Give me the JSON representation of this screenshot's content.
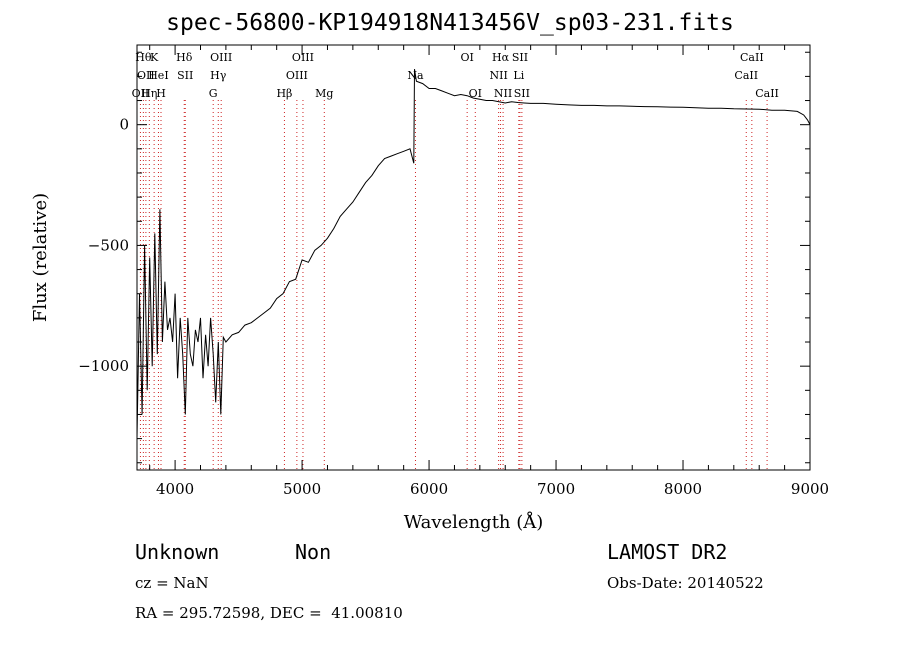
{
  "chart_data": {
    "type": "line",
    "title": "spec-56800-KP194918N413456V_sp03-231.fits",
    "xlabel": "Wavelength (Å)",
    "ylabel": "Flux (relative)",
    "xlim": [
      3700,
      9000
    ],
    "ylim": [
      -1430,
      330
    ],
    "x_ticks": [
      {
        "v": 4000,
        "label": "4000"
      },
      {
        "v": 5000,
        "label": "5000"
      },
      {
        "v": 6000,
        "label": "6000"
      },
      {
        "v": 7000,
        "label": "7000"
      },
      {
        "v": 8000,
        "label": "8000"
      },
      {
        "v": 9000,
        "label": "9000"
      }
    ],
    "y_ticks": [
      {
        "v": 0,
        "label": "0"
      },
      {
        "v": -500,
        "label": "−500"
      },
      {
        "v": -1000,
        "label": "−1000"
      }
    ],
    "grid": false,
    "line_color": "#000000",
    "marker_color": "#cc2222",
    "series": [
      {
        "x": [
          3700,
          3720,
          3740,
          3760,
          3780,
          3800,
          3820,
          3840,
          3860,
          3880,
          3900,
          3920,
          3940,
          3960,
          3980,
          4000,
          4020,
          4040,
          4060,
          4080,
          4100,
          4120,
          4140,
          4160,
          4180,
          4200,
          4220,
          4240,
          4260,
          4280,
          4300,
          4320,
          4340,
          4360,
          4380,
          4400,
          4450,
          4500,
          4550,
          4600,
          4650,
          4700,
          4750,
          4800,
          4850,
          4900,
          4950,
          5000,
          5050,
          5100,
          5150,
          5200,
          5250,
          5300,
          5350,
          5400,
          5450,
          5500,
          5550,
          5600,
          5650,
          5700,
          5750,
          5800,
          5850,
          5880,
          5885,
          5900,
          5950,
          6000,
          6050,
          6100,
          6150,
          6200,
          6250,
          6300,
          6350,
          6400,
          6450,
          6500,
          6550,
          6600,
          6650,
          6700,
          6750,
          6800,
          6900,
          7000,
          7100,
          7200,
          7300,
          7400,
          7500,
          7600,
          7700,
          7800,
          7900,
          8000,
          8100,
          8200,
          8300,
          8400,
          8500,
          8600,
          8700,
          8800,
          8900,
          8950,
          8980,
          9000
        ],
        "y": [
          -1300,
          -700,
          -1200,
          -500,
          -1100,
          -550,
          -1000,
          -450,
          -950,
          -350,
          -900,
          -650,
          -850,
          -800,
          -900,
          -700,
          -1050,
          -800,
          -950,
          -1200,
          -800,
          -950,
          -1000,
          -850,
          -900,
          -800,
          -1050,
          -870,
          -1000,
          -800,
          -950,
          -1150,
          -900,
          -1200,
          -880,
          -900,
          -870,
          -860,
          -830,
          -820,
          -800,
          -780,
          -760,
          -720,
          -700,
          -650,
          -640,
          -560,
          -570,
          -520,
          -500,
          -470,
          -430,
          -380,
          -350,
          -320,
          -280,
          -240,
          -210,
          -170,
          -140,
          -130,
          -120,
          -110,
          -100,
          -160,
          230,
          180,
          170,
          150,
          150,
          140,
          130,
          120,
          125,
          120,
          110,
          105,
          100,
          100,
          95,
          90,
          95,
          92,
          90,
          88,
          88,
          85,
          82,
          80,
          80,
          78,
          78,
          76,
          75,
          74,
          73,
          72,
          70,
          68,
          68,
          66,
          65,
          64,
          60,
          60,
          55,
          40,
          20,
          0
        ]
      }
    ],
    "annotations": [
      {
        "x": 3727,
        "label": "OII",
        "row": 2
      },
      {
        "x": 3750,
        "label": "Hθ",
        "row": 0
      },
      {
        "x": 3770,
        "label": "OII",
        "row": 1
      },
      {
        "x": 3797,
        "label": "Hη",
        "row": 2
      },
      {
        "x": 3835,
        "label": "K",
        "row": 0
      },
      {
        "x": 3869,
        "label": "HeI",
        "row": 1
      },
      {
        "x": 3889,
        "label": "H",
        "row": 2
      },
      {
        "x": 4072,
        "label": "Hδ",
        "row": 0
      },
      {
        "x": 4080,
        "label": "SII",
        "row": 1
      },
      {
        "x": 4300,
        "label": "G",
        "row": 2
      },
      {
        "x": 4340,
        "label": "Hγ",
        "row": 1
      },
      {
        "x": 4363,
        "label": "OIII",
        "row": 0
      },
      {
        "x": 4861,
        "label": "Hβ",
        "row": 2
      },
      {
        "x": 4959,
        "label": "OIII",
        "row": 1
      },
      {
        "x": 5007,
        "label": "OIII",
        "row": 0
      },
      {
        "x": 5175,
        "label": "Mg",
        "row": 2
      },
      {
        "x": 5893,
        "label": "Na",
        "row": 1
      },
      {
        "x": 6300,
        "label": "OI",
        "row": 0
      },
      {
        "x": 6364,
        "label": "OI",
        "row": 2
      },
      {
        "x": 6548,
        "label": "NII",
        "row": 1
      },
      {
        "x": 6563,
        "label": "Hα",
        "row": 0
      },
      {
        "x": 6583,
        "label": "NII",
        "row": 2
      },
      {
        "x": 6707,
        "label": "Li",
        "row": 1
      },
      {
        "x": 6716,
        "label": "SII",
        "row": 0
      },
      {
        "x": 6731,
        "label": "SII",
        "row": 2
      },
      {
        "x": 8498,
        "label": "CaII",
        "row": 1
      },
      {
        "x": 8542,
        "label": "CaII",
        "row": 0
      },
      {
        "x": 8662,
        "label": "CaII",
        "row": 2
      }
    ]
  },
  "info": {
    "class_text": "Unknown",
    "subclass_text": "Non",
    "survey": "LAMOST DR2",
    "cz": "cz = NaN",
    "obs_date": "Obs-Date: 20140522",
    "coords": "RA = 295.72598, DEC =  41.00810"
  }
}
